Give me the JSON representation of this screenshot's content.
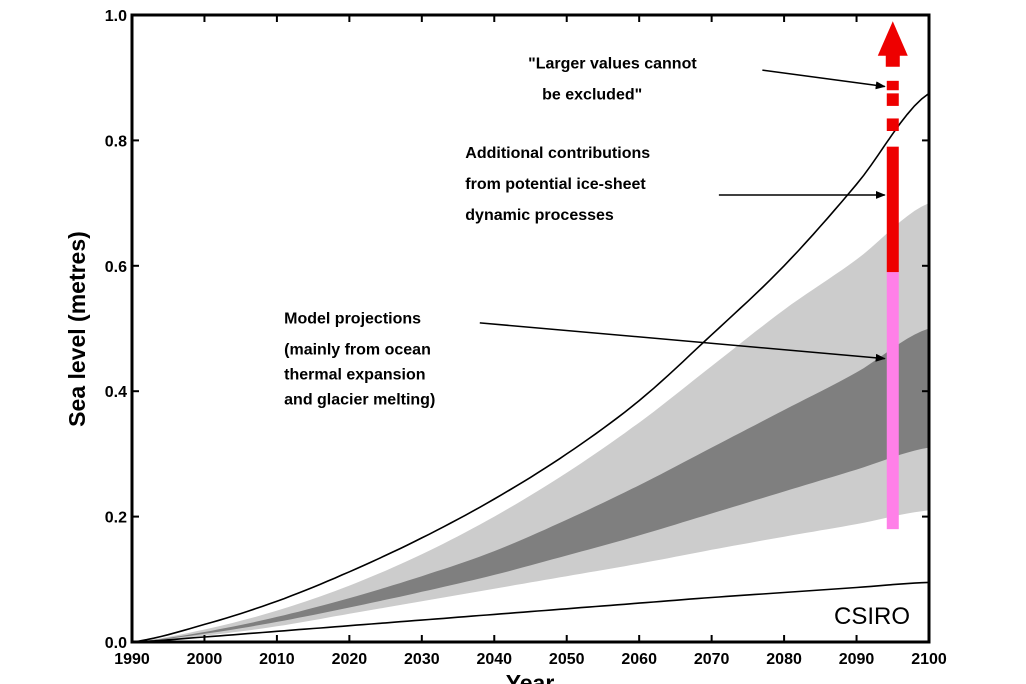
{
  "chart_data": {
    "type": "area",
    "xlabel": "Year",
    "ylabel": "Sea level (metres)",
    "xlim": [
      1990,
      2100
    ],
    "ylim": [
      0.0,
      1.0
    ],
    "x_ticks": [
      "1990",
      "2000",
      "2010",
      "2020",
      "2030",
      "2040",
      "2050",
      "2060",
      "2070",
      "2080",
      "2090",
      "2100"
    ],
    "y_ticks": [
      "0.0",
      "0.2",
      "0.4",
      "0.6",
      "0.8",
      "1.0"
    ],
    "x": [
      1990,
      2000,
      2010,
      2020,
      2030,
      2040,
      2050,
      2060,
      2070,
      2080,
      2090,
      2100
    ],
    "bands": [
      {
        "shade": "light",
        "color": "#cccccc",
        "lower": [
          0.0,
          0.01,
          0.025,
          0.045,
          0.065,
          0.085,
          0.105,
          0.125,
          0.147,
          0.168,
          0.188,
          0.21
        ],
        "upper": [
          0.0,
          0.02,
          0.05,
          0.09,
          0.14,
          0.2,
          0.27,
          0.35,
          0.44,
          0.53,
          0.61,
          0.7
        ]
      },
      {
        "shade": "dark",
        "color": "#7f7f7f",
        "lower": [
          0.0,
          0.013,
          0.032,
          0.055,
          0.08,
          0.107,
          0.138,
          0.17,
          0.205,
          0.24,
          0.275,
          0.31
        ],
        "upper": [
          0.0,
          0.016,
          0.04,
          0.07,
          0.105,
          0.145,
          0.195,
          0.25,
          0.31,
          0.37,
          0.43,
          0.5
        ]
      }
    ],
    "lines": [
      {
        "shape": "upper-curve",
        "color": "#000000",
        "values": [
          0.0,
          0.028,
          0.065,
          0.112,
          0.166,
          0.228,
          0.3,
          0.385,
          0.49,
          0.6,
          0.73,
          0.875
        ]
      },
      {
        "shape": "lower-line",
        "color": "#000000",
        "values": [
          0.0,
          0.008,
          0.017,
          0.026,
          0.035,
          0.044,
          0.053,
          0.062,
          0.071,
          0.079,
          0.087,
          0.095
        ]
      }
    ],
    "bars": {
      "x": 2095,
      "model_projection": {
        "y0": 0.18,
        "y1": 0.59,
        "color": "#ff80e8"
      },
      "ice_sheet": {
        "y0": 0.59,
        "y1": 0.79,
        "color": "#ee0000"
      },
      "dashed_segments": [
        [
          0.815,
          0.835
        ],
        [
          0.855,
          0.875
        ],
        [
          0.88,
          0.895
        ]
      ],
      "arrow_head": {
        "y_base": 0.935,
        "y_tip": 0.99,
        "color": "#ee0000"
      }
    },
    "annotations": [
      {
        "id": "larger-values",
        "lines": [
          "\"Larger values cannot",
          "be excluded\""
        ],
        "text_pos": {
          "x": 2011,
          "y": 0.915
        },
        "arrow_from": {
          "x": 2077,
          "y": 0.912
        },
        "arrow_to": {
          "x": 2095,
          "y": 0.886
        }
      },
      {
        "id": "ice-sheet",
        "lines": [
          "Additional contributions",
          "from potential ice-sheet",
          "dynamic processes"
        ],
        "text_pos": {
          "x": 2036,
          "y": 0.772
        },
        "arrow_from": {
          "x": 2071,
          "y": 0.713
        },
        "arrow_to": {
          "x": 2095,
          "y": 0.713
        }
      },
      {
        "id": "model-projections",
        "lines": [
          "Model projections",
          "(mainly from ocean",
          "thermal expansion",
          "and glacier melting)"
        ],
        "text_pos": {
          "x": 2011,
          "y": 0.508
        },
        "arrow_from": {
          "x": 2038,
          "y": 0.509
        },
        "arrow_to": {
          "x": 2095,
          "y": 0.452
        }
      }
    ],
    "credit": "CSIRO"
  }
}
